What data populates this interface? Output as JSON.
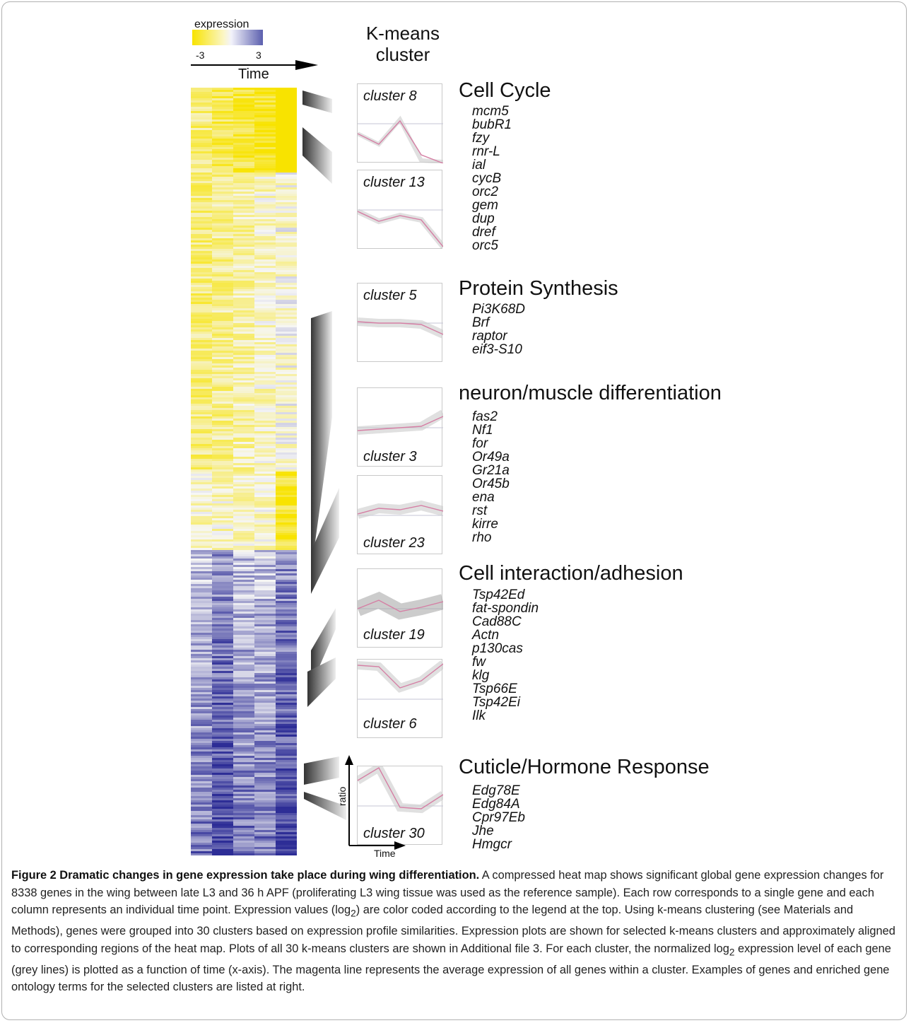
{
  "legend": {
    "title": "expression",
    "min_label": "-3",
    "max_label": "3",
    "axis_label": "Time",
    "low_color": "#f8e300",
    "high_color": "#5b5fae"
  },
  "kmeans_title": "K-means\ncluster",
  "clusters": [
    {
      "label": "cluster 8"
    },
    {
      "label": "cluster 13"
    },
    {
      "label": "cluster 5"
    },
    {
      "label": "cluster 3"
    },
    {
      "label": "cluster 23"
    },
    {
      "label": "cluster 19"
    },
    {
      "label": "cluster 6"
    },
    {
      "label": "cluster 30"
    }
  ],
  "axes_inset": {
    "y_label": "ratio",
    "x_label": "Time"
  },
  "groups": [
    {
      "title": "Cell Cycle",
      "genes": [
        "mcm5",
        "bubR1",
        "fzy",
        "rnr-L",
        "ial",
        "cycB",
        "orc2",
        "gem",
        "dup",
        "dref",
        "orc5"
      ]
    },
    {
      "title": "Protein Synthesis",
      "genes": [
        "Pi3K68D",
        "Brf",
        "raptor",
        "eif3-S10"
      ]
    },
    {
      "title": "neuron/muscle differentiation",
      "genes": [
        "fas2",
        "Nf1",
        "for",
        "Or49a",
        "Gr21a",
        "Or45b",
        "ena",
        "rst",
        "kirre",
        "rho"
      ]
    },
    {
      "title": "Cell interaction/adhesion",
      "genes": [
        "Tsp42Ed",
        "fat-spondin",
        "Cad88C",
        "Actn",
        "p130cas",
        "fw",
        "klg",
        "Tsp66E",
        "Tsp42Ei",
        "Ilk"
      ]
    },
    {
      "title": "Cuticle/Hormone Response",
      "genes": [
        "Edg78E",
        "Edg84A",
        "Cpr97Eb",
        "Jhe",
        "Hmgcr"
      ]
    }
  ],
  "caption": {
    "title": "Figure 2 Dramatic changes in gene expression take place during wing differentiation.",
    "body_1": " A compressed heat map shows significant global gene expression changes for 8338 genes in the wing between late L3 and 36 h APF (proliferating L3 wing tissue was used as the reference sample). Each row corresponds to a single gene and each column represents an individual time point. Expression values (log",
    "sub_1": "2",
    "body_2": ") are color coded according to the legend at the top. Using k-means clustering (see Materials and Methods), genes were grouped into 30 clusters based on expression profile similarities. Expression plots are shown for selected k-means clusters and approximately aligned to corresponding regions of the heat map. Plots of all 30 k-means clusters are shown in Additional file 3. For each cluster, the normalized log",
    "sub_2": "2",
    "body_3": " expression level of each gene (grey lines) is plotted as a function of time (x-axis). The magenta line represents the average expression of all genes within a cluster. Examples of genes and enriched gene ontology terms for the selected clusters are listed at right."
  }
}
